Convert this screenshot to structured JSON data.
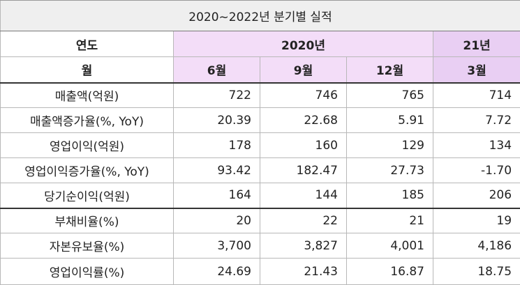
{
  "title": "2020~2022년 분기별 실적",
  "header": {
    "year_label": "연도",
    "month_label": "월",
    "group_2020": "2020년",
    "group_21": "21년",
    "months": [
      "6월",
      "9월",
      "12월",
      "3월"
    ]
  },
  "rows": [
    {
      "label": "매출액(억원)",
      "values": [
        "722",
        "746",
        "765",
        "714"
      ]
    },
    {
      "label": "매출액증가율(%, YoY)",
      "values": [
        "20.39",
        "22.68",
        "5.91",
        "7.72"
      ]
    },
    {
      "label": "영업이익(억원)",
      "values": [
        "178",
        "160",
        "129",
        "134"
      ]
    },
    {
      "label": "영업이익증가율(%, YoY)",
      "values": [
        "93.42",
        "182.47",
        "27.73",
        "-1.70"
      ]
    },
    {
      "label": "당기순이익(억원)",
      "values": [
        "164",
        "144",
        "185",
        "206"
      ]
    },
    {
      "label": "부채비율(%)",
      "values": [
        "20",
        "22",
        "21",
        "19"
      ]
    },
    {
      "label": "자본유보율(%)",
      "values": [
        "3,700",
        "3,827",
        "4,001",
        "4,186"
      ]
    },
    {
      "label": "영업이익률(%)",
      "values": [
        "24.69",
        "21.43",
        "16.87",
        "18.75"
      ]
    }
  ],
  "colors": {
    "positive_highlight": "#e2232a",
    "negative_highlight": "#3c79d4",
    "header_2020_bg": "#f3ddf8",
    "header_21_bg": "#e9cff3",
    "title_bg": "#efefef"
  }
}
